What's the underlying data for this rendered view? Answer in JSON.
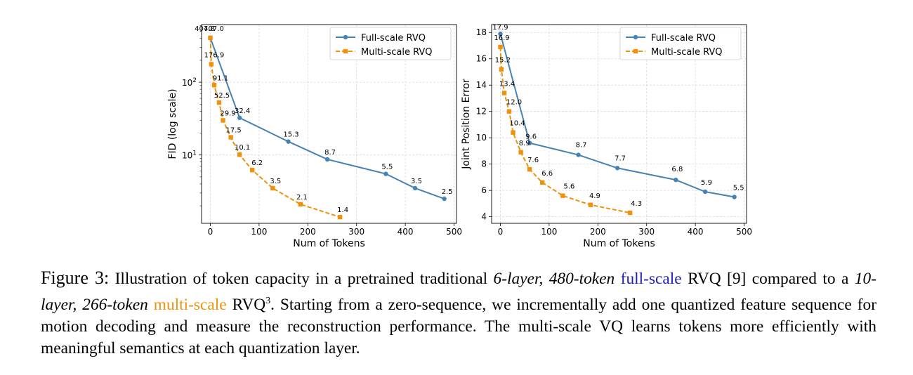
{
  "chart_data": [
    {
      "type": "line",
      "title": "",
      "xlabel": "Num of Tokens",
      "ylabel": "FID (log scale)",
      "yscale": "log",
      "xlim": [
        -18,
        505
      ],
      "ylim": [
        1.15,
        620
      ],
      "xticks": [
        0,
        100,
        200,
        300,
        400,
        500
      ],
      "xtick_labels": [
        "0",
        "100",
        "200",
        "300",
        "400",
        "500"
      ],
      "yticks": [
        10,
        100
      ],
      "ytick_labels": [
        "10^1",
        "10^2"
      ],
      "grid": true,
      "legend_position": "top-right",
      "series": [
        {
          "name": "Full-scale RVQ",
          "color": "#4682b4",
          "marker": "circle",
          "linestyle": "solid",
          "x": [
            0,
            60,
            160,
            240,
            360,
            420,
            480
          ],
          "y": [
            407.0,
            32.4,
            15.3,
            8.7,
            5.5,
            3.5,
            2.5
          ],
          "labels": [
            "407.0",
            "32.4",
            "15.3",
            "8.7",
            "5.5",
            "3.5",
            "2.5"
          ]
        },
        {
          "name": "Multi-scale RVQ",
          "color": "#f0910c",
          "marker": "square",
          "linestyle": "dashed",
          "x": [
            0,
            2,
            8,
            18,
            26,
            42,
            60,
            86,
            128,
            185,
            266
          ],
          "y": [
            407.8,
            176.9,
            91.1,
            52.5,
            29.9,
            17.5,
            10.1,
            6.2,
            3.5,
            2.1,
            1.4
          ],
          "labels": [
            "407.8",
            "176.9",
            "91.1",
            "52.5",
            "29.9",
            "17.5",
            "10.1",
            "6.2",
            "3.5",
            "2.1",
            "1.4"
          ]
        }
      ]
    },
    {
      "type": "line",
      "title": "",
      "xlabel": "Num of Tokens",
      "ylabel": "Joint Position Error",
      "yscale": "linear",
      "xlim": [
        -18,
        505
      ],
      "ylim": [
        3.5,
        18.6
      ],
      "xticks": [
        0,
        100,
        200,
        300,
        400,
        500
      ],
      "xtick_labels": [
        "0",
        "100",
        "200",
        "300",
        "400",
        "500"
      ],
      "yticks": [
        4,
        6,
        8,
        10,
        12,
        14,
        16,
        18
      ],
      "ytick_labels": [
        "4",
        "6",
        "8",
        "10",
        "12",
        "14",
        "16",
        "18"
      ],
      "grid": true,
      "legend_position": "top-right",
      "series": [
        {
          "name": "Full-scale RVQ",
          "color": "#4682b4",
          "marker": "circle",
          "linestyle": "solid",
          "x": [
            0,
            60,
            160,
            240,
            360,
            420,
            480
          ],
          "y": [
            17.9,
            9.6,
            8.7,
            7.7,
            6.8,
            5.9,
            5.5
          ],
          "labels": [
            "17.9",
            "9.6",
            "8.7",
            "7.7",
            "6.8",
            "5.9",
            "5.5"
          ]
        },
        {
          "name": "Multi-scale RVQ",
          "color": "#f0910c",
          "marker": "square",
          "linestyle": "dashed",
          "x": [
            0,
            2,
            8,
            18,
            26,
            42,
            60,
            86,
            128,
            185,
            266
          ],
          "y": [
            16.9,
            15.2,
            13.4,
            12.0,
            10.4,
            8.9,
            7.6,
            6.6,
            5.6,
            4.9,
            4.3
          ],
          "labels": [
            "16.9",
            "15.2",
            "13.4",
            "12.0",
            "10.4",
            "8.9",
            "7.6",
            "6.6",
            "5.6",
            "4.9",
            "4.3"
          ]
        }
      ]
    }
  ],
  "caption": {
    "label": "Figure 3:",
    "t1": " Illustration of token capacity in a pretrained traditional ",
    "i1": "6-layer, 480-token",
    "full_scale": "full-scale",
    "t2": " RVQ [9] compared to a ",
    "i2": "10-layer, 266-token",
    "multi_scale": "multi-scale",
    "t3": " RVQ",
    "sup": "3",
    "t4": ". Starting from a zero-sequence, we incrementally add one quantized feature sequence for motion decoding and measure the reconstruction performance. The multi-scale VQ learns tokens more efficiently with meaningful semantics at each quantization layer."
  }
}
